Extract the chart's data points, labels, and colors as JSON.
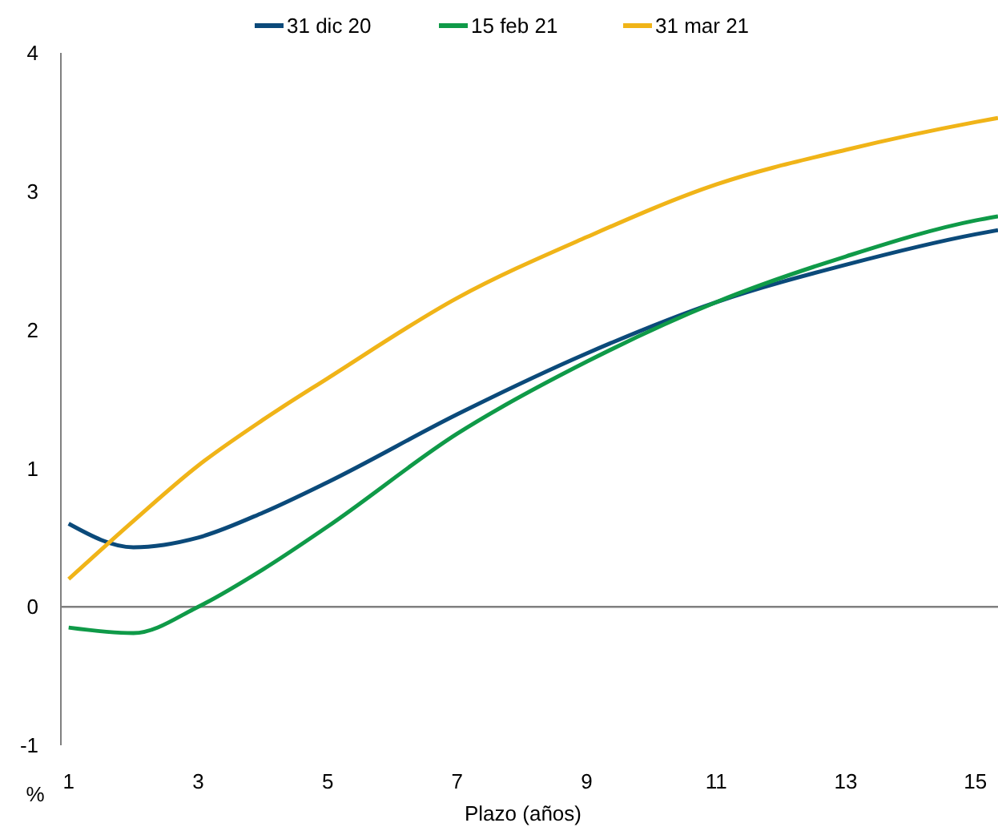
{
  "chart_data": {
    "type": "line",
    "xlabel": "Plazo (años)",
    "ylabel": "%",
    "x": [
      1,
      2,
      3,
      4,
      5,
      7,
      9,
      11,
      13,
      15,
      15.35
    ],
    "series": [
      {
        "name": "31 dic 20",
        "color": "#0b4a7a",
        "values": [
          0.6,
          0.43,
          0.5,
          0.68,
          0.9,
          1.39,
          1.83,
          2.2,
          2.47,
          2.69,
          2.72
        ]
      },
      {
        "name": "15 feb 21",
        "color": "#0f9a48",
        "values": [
          -0.15,
          -0.19,
          0.0,
          0.27,
          0.58,
          1.25,
          1.77,
          2.2,
          2.53,
          2.79,
          2.82
        ]
      },
      {
        "name": "31 mar 21",
        "color": "#f0b418",
        "values": [
          0.2,
          0.62,
          1.02,
          1.35,
          1.65,
          2.23,
          2.67,
          3.05,
          3.3,
          3.5,
          3.53
        ]
      }
    ],
    "xlim": [
      0.88,
      15.35
    ],
    "xticks": [
      1,
      3,
      5,
      7,
      9,
      11,
      13,
      15
    ],
    "ylim": [
      -1,
      4
    ],
    "yticks": [
      -1,
      0,
      1,
      2,
      3,
      4
    ],
    "ref_lines": [
      {
        "axis": "y",
        "value": 0,
        "color": "#808080"
      }
    ],
    "grid": false,
    "legend": "top",
    "marker": "none",
    "line_style": "solid"
  }
}
